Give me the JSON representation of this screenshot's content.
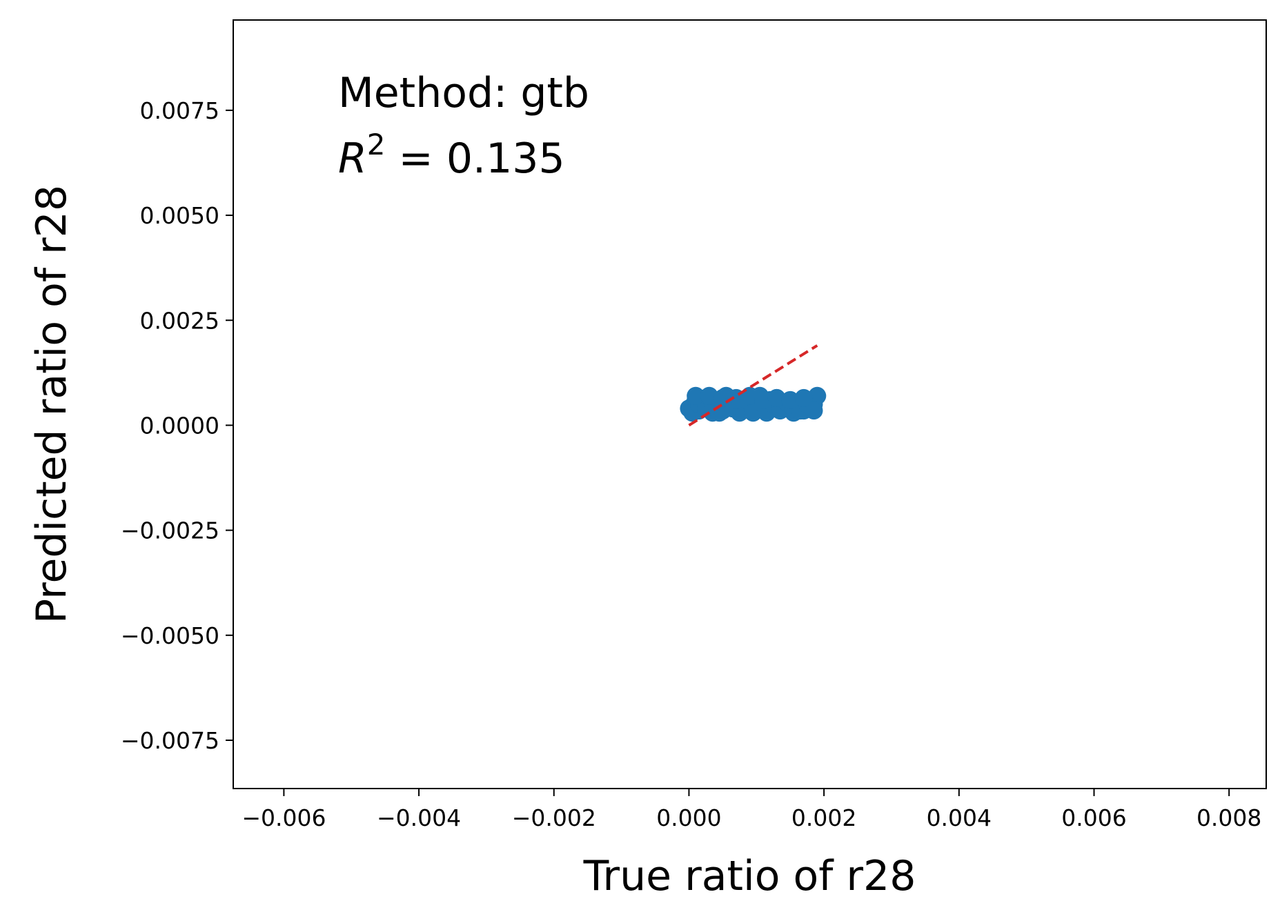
{
  "chart_data": {
    "type": "scatter",
    "title": "",
    "xlabel": "True ratio of r28",
    "ylabel": "Predicted ratio of r28",
    "xlim": [
      -0.00675,
      0.00855
    ],
    "ylim": [
      -0.00865,
      0.00965
    ],
    "xticks": [
      -0.006,
      -0.004,
      -0.002,
      0.0,
      0.002,
      0.004,
      0.006,
      0.008
    ],
    "xtick_labels": [
      "−0.006",
      "−0.004",
      "−0.002",
      "0.000",
      "0.002",
      "0.004",
      "0.006",
      "0.008"
    ],
    "yticks": [
      -0.0075,
      -0.005,
      -0.0025,
      0.0,
      0.0025,
      0.005,
      0.0075
    ],
    "ytick_labels": [
      "−0.0075",
      "−0.0050",
      "−0.0025",
      "0.0000",
      "0.0025",
      "0.0050",
      "0.0075"
    ],
    "grid": false,
    "annotation": {
      "method": "Method: gtb",
      "r2_symbol": "R",
      "r2_exponent": "2",
      "r2_value": " = 0.135"
    },
    "reference_line": {
      "style": "dashed",
      "color": "#d62728",
      "x": [
        0.0,
        0.0019
      ],
      "y": [
        0.0,
        0.0019
      ]
    },
    "series": [
      {
        "color": "#1f77b4",
        "x": [
          0.0,
          5e-05,
          0.0001,
          0.00015,
          0.0002,
          0.00025,
          0.0003,
          0.00035,
          0.0004,
          0.00045,
          0.0005,
          0.00055,
          0.0006,
          0.00065,
          0.0007,
          0.00075,
          0.0008,
          0.00085,
          0.0009,
          0.00095,
          0.001,
          0.00105,
          0.0011,
          0.00115,
          0.0012,
          0.00125,
          0.0013,
          0.00135,
          0.0014,
          0.00145,
          0.0015,
          0.00155,
          0.0016,
          0.00165,
          0.0017,
          0.00175,
          0.0018,
          0.00185,
          0.0019,
          5e-05,
          0.00015,
          0.00025,
          0.00035,
          0.00045,
          0.00055,
          0.00065,
          0.00075,
          0.00085,
          0.00095,
          0.00105,
          0.00115,
          0.00125,
          0.00135,
          0.00145,
          0.00155,
          0.00165,
          0.00175,
          0.00185,
          0.0001,
          0.0003,
          0.0005,
          0.0007,
          0.0009,
          0.0011,
          0.0013,
          0.0015,
          0.0017
        ],
        "y": [
          0.0004,
          0.00045,
          0.0006,
          0.00035,
          0.0005,
          0.00065,
          0.0004,
          0.0003,
          0.0006,
          0.00045,
          0.00035,
          0.0007,
          0.0005,
          0.0004,
          0.00065,
          0.0003,
          0.00055,
          0.0004,
          0.0006,
          0.00035,
          0.0005,
          0.0007,
          0.0004,
          0.0003,
          0.0006,
          0.00045,
          0.00065,
          0.00035,
          0.0005,
          0.0004,
          0.0006,
          0.0003,
          0.00055,
          0.00045,
          0.00035,
          0.0006,
          0.0004,
          0.0005,
          0.0007,
          0.0003,
          0.0005,
          0.0004,
          0.00055,
          0.0003,
          0.0006,
          0.0004,
          0.00045,
          0.0006,
          0.0003,
          0.00055,
          0.00035,
          0.0005,
          0.0004,
          0.00055,
          0.0004,
          0.00035,
          0.0005,
          0.00035,
          0.0007,
          0.0007,
          0.00065,
          0.0006,
          0.0007,
          0.0006,
          0.00065,
          0.0006,
          0.00065
        ]
      }
    ]
  }
}
